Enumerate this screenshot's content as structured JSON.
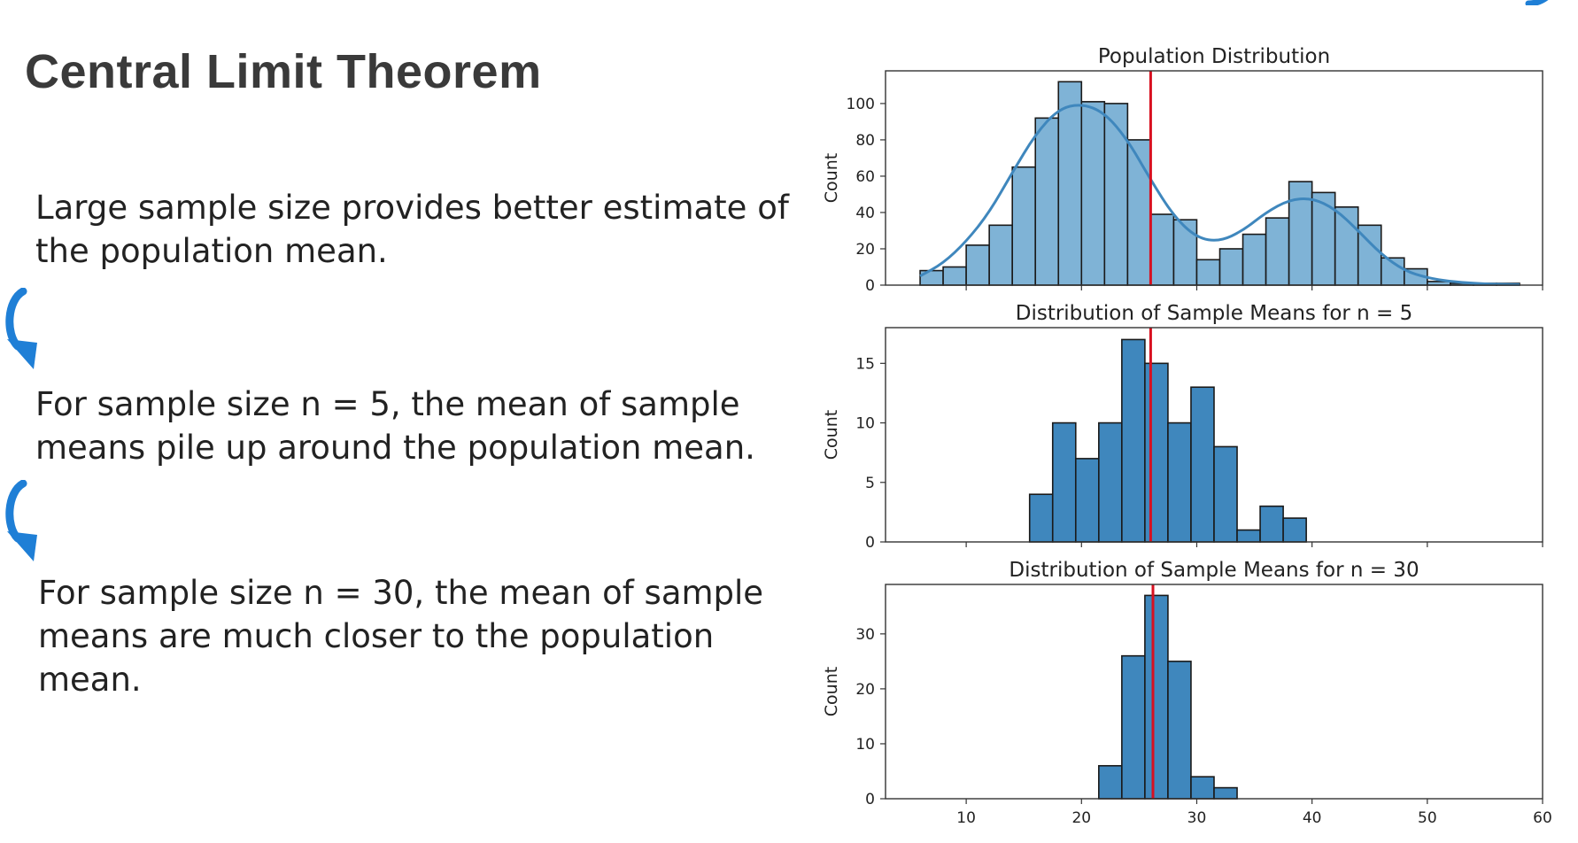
{
  "slide": {
    "title": "Central Limit Theorem",
    "paragraphs": [
      "Large sample size provides better estimate of the population mean.",
      "For sample size n = 5, the mean of sample means pile up around the population mean.",
      "For sample size n = 30, the mean of sample means are much closer to the population mean."
    ],
    "arrow_icon": "curved-down-arrow-icon",
    "accent_color": "#1f7fd6"
  },
  "chart_data": [
    {
      "type": "bar",
      "title": "Population Distribution",
      "ylabel": "Count",
      "xlabel": "",
      "xlim": [
        3,
        60
      ],
      "ylim": [
        0,
        118
      ],
      "yticks": [
        0,
        20,
        40,
        60,
        80,
        100
      ],
      "xticks": [
        10,
        20,
        30,
        40,
        50,
        60
      ],
      "show_xtick_labels": false,
      "bin_width": 2,
      "bins": [
        {
          "x": 6,
          "value": 8
        },
        {
          "x": 8,
          "value": 10
        },
        {
          "x": 10,
          "value": 22
        },
        {
          "x": 12,
          "value": 33
        },
        {
          "x": 14,
          "value": 65
        },
        {
          "x": 16,
          "value": 92
        },
        {
          "x": 18,
          "value": 112
        },
        {
          "x": 20,
          "value": 101
        },
        {
          "x": 22,
          "value": 100
        },
        {
          "x": 24,
          "value": 80
        },
        {
          "x": 26,
          "value": 39
        },
        {
          "x": 28,
          "value": 36
        },
        {
          "x": 30,
          "value": 14
        },
        {
          "x": 32,
          "value": 20
        },
        {
          "x": 34,
          "value": 28
        },
        {
          "x": 36,
          "value": 37
        },
        {
          "x": 38,
          "value": 57
        },
        {
          "x": 40,
          "value": 51
        },
        {
          "x": 42,
          "value": 43
        },
        {
          "x": 44,
          "value": 33
        },
        {
          "x": 46,
          "value": 15
        },
        {
          "x": 48,
          "value": 9
        },
        {
          "x": 50,
          "value": 2
        },
        {
          "x": 52,
          "value": 1
        },
        {
          "x": 54,
          "value": 1
        },
        {
          "x": 56,
          "value": 1
        }
      ],
      "kde": [
        [
          6,
          5
        ],
        [
          8,
          12
        ],
        [
          10,
          24
        ],
        [
          12,
          40
        ],
        [
          14,
          62
        ],
        [
          16,
          83
        ],
        [
          18,
          97
        ],
        [
          20,
          100
        ],
        [
          22,
          95
        ],
        [
          24,
          80
        ],
        [
          26,
          58
        ],
        [
          28,
          38
        ],
        [
          30,
          26
        ],
        [
          32,
          24
        ],
        [
          34,
          30
        ],
        [
          36,
          40
        ],
        [
          38,
          47
        ],
        [
          40,
          48
        ],
        [
          42,
          42
        ],
        [
          44,
          30
        ],
        [
          46,
          17
        ],
        [
          48,
          8
        ],
        [
          50,
          4
        ],
        [
          52,
          2
        ],
        [
          54,
          1
        ],
        [
          56,
          0.5
        ],
        [
          58,
          0.3
        ]
      ],
      "mean_line": 26,
      "bar_color": "#7fb3d6",
      "kde_color": "#3f87bd",
      "mean_color": "#d81020"
    },
    {
      "type": "bar",
      "title": "Distribution of Sample Means for n = 5",
      "ylabel": "Count",
      "xlabel": "",
      "xlim": [
        3,
        60
      ],
      "ylim": [
        0,
        18
      ],
      "yticks": [
        0,
        5,
        10,
        15
      ],
      "xticks": [
        10,
        20,
        30,
        40,
        50,
        60
      ],
      "show_xtick_labels": false,
      "bin_width": 2,
      "bins": [
        {
          "x": 15.5,
          "value": 4
        },
        {
          "x": 17.5,
          "value": 10
        },
        {
          "x": 19.5,
          "value": 7
        },
        {
          "x": 21.5,
          "value": 10
        },
        {
          "x": 23.5,
          "value": 17
        },
        {
          "x": 25.5,
          "value": 15
        },
        {
          "x": 27.5,
          "value": 10
        },
        {
          "x": 29.5,
          "value": 13
        },
        {
          "x": 31.5,
          "value": 8
        },
        {
          "x": 33.5,
          "value": 1
        },
        {
          "x": 35.5,
          "value": 3
        },
        {
          "x": 37.5,
          "value": 2
        }
      ],
      "mean_line": 26,
      "bar_color": "#3f87bd",
      "mean_color": "#d81020"
    },
    {
      "type": "bar",
      "title": "Distribution of Sample Means for n = 30",
      "ylabel": "Count",
      "xlabel": "",
      "xlim": [
        3,
        60
      ],
      "ylim": [
        0,
        39
      ],
      "yticks": [
        0,
        10,
        20,
        30
      ],
      "xticks": [
        10,
        20,
        30,
        40,
        50,
        60
      ],
      "show_xtick_labels": true,
      "bin_width": 2,
      "bins": [
        {
          "x": 21.5,
          "value": 6
        },
        {
          "x": 23.5,
          "value": 26
        },
        {
          "x": 25.5,
          "value": 37
        },
        {
          "x": 27.5,
          "value": 25
        },
        {
          "x": 29.5,
          "value": 4
        },
        {
          "x": 31.5,
          "value": 2
        }
      ],
      "mean_line": 26.2,
      "bar_color": "#3f87bd",
      "mean_color": "#d81020"
    }
  ]
}
